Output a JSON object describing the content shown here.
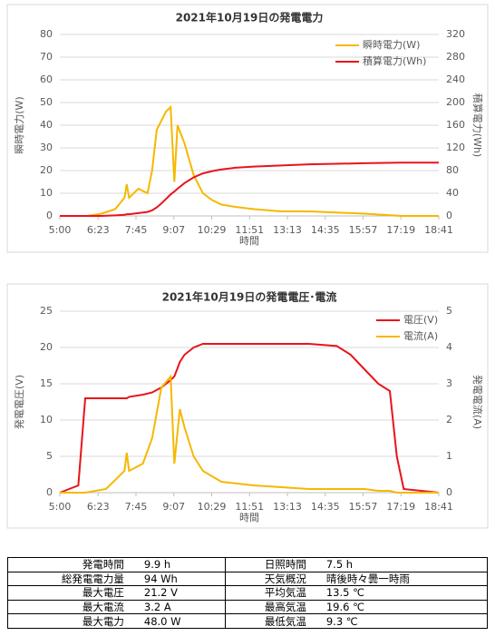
{
  "chart_data": [
    {
      "type": "line",
      "title": "2021年10月19日の発電電力",
      "xlabel": "時間",
      "ylabel": "瞬時電力(W)",
      "y2label": "積算電力(Wh)",
      "x": [
        300,
        360,
        390,
        420,
        440,
        445,
        450,
        470,
        490,
        500,
        510,
        520,
        530,
        540,
        548,
        555,
        570,
        590,
        610,
        630,
        650,
        680,
        720,
        780,
        840,
        900,
        960,
        1040,
        1121
      ],
      "series": [
        {
          "name": "瞬時電力(W)",
          "color": "#f5b800",
          "values": [
            0,
            0,
            1,
            3,
            8,
            14,
            8,
            12,
            10,
            20,
            38,
            42,
            46,
            48,
            15,
            40,
            32,
            18,
            10,
            7,
            5,
            4,
            3,
            2,
            2,
            1.5,
            1,
            0,
            0
          ]
        },
        {
          "name": "積算電力(Wh)",
          "color": "#e8141b",
          "axis": "y2",
          "values": [
            0,
            0,
            0,
            1,
            2,
            3,
            3,
            5,
            7,
            10,
            15,
            22,
            30,
            38,
            43,
            48,
            58,
            68,
            75,
            79,
            82,
            85,
            87,
            89,
            91,
            92,
            93,
            94,
            94
          ]
        }
      ],
      "xlim": [
        300,
        1121
      ],
      "xticks": [
        {
          "value": 300,
          "label": "5:00"
        },
        {
          "value": 383,
          "label": "6:23"
        },
        {
          "value": 465,
          "label": "7:45"
        },
        {
          "value": 547,
          "label": "9:07"
        },
        {
          "value": 629,
          "label": "10:29"
        },
        {
          "value": 711,
          "label": "11:51"
        },
        {
          "value": 793,
          "label": "13:13"
        },
        {
          "value": 875,
          "label": "14:35"
        },
        {
          "value": 957,
          "label": "15:57"
        },
        {
          "value": 1039,
          "label": "17:19"
        },
        {
          "value": 1121,
          "label": "18:41"
        }
      ],
      "ylim": [
        0,
        80
      ],
      "yticks": [
        0,
        10,
        20,
        30,
        40,
        50,
        60,
        70,
        80
      ],
      "y2lim": [
        0,
        320
      ],
      "y2ticks": [
        0,
        40,
        80,
        120,
        160,
        200,
        240,
        280,
        320
      ],
      "grid": true,
      "legend": "top-right"
    },
    {
      "type": "line",
      "title": "2021年10月19日の発電電圧･電流",
      "xlabel": "時間",
      "ylabel": "発電電圧(V)",
      "y2label": "発電電流(A)",
      "x": [
        300,
        340,
        355,
        400,
        440,
        445,
        450,
        480,
        500,
        520,
        540,
        548,
        560,
        570,
        590,
        610,
        650,
        720,
        780,
        840,
        900,
        930,
        960,
        990,
        1015,
        1030,
        1045,
        1121
      ],
      "series": [
        {
          "name": "電圧(V)",
          "color": "#e8141b",
          "values": [
            0,
            1,
            13,
            13,
            13,
            13,
            13.2,
            13.5,
            13.8,
            14.5,
            15.5,
            16,
            18,
            19,
            20,
            20.5,
            20.5,
            20.5,
            20.5,
            20.5,
            20.2,
            19,
            17,
            15,
            14,
            5,
            0.5,
            0
          ]
        },
        {
          "name": "電流(A)",
          "color": "#f5b800",
          "axis": "y2",
          "values": [
            0,
            0,
            0,
            0.1,
            0.6,
            1.1,
            0.6,
            0.8,
            1.5,
            2.9,
            3.2,
            0.8,
            2.3,
            1.8,
            1.0,
            0.6,
            0.3,
            0.2,
            0.15,
            0.1,
            0.1,
            0.1,
            0.1,
            0.05,
            0.05,
            0,
            0,
            0
          ]
        }
      ],
      "xlim": [
        300,
        1121
      ],
      "xticks": [
        {
          "value": 300,
          "label": "5:00"
        },
        {
          "value": 383,
          "label": "6:23"
        },
        {
          "value": 465,
          "label": "7:45"
        },
        {
          "value": 547,
          "label": "9:07"
        },
        {
          "value": 629,
          "label": "10:29"
        },
        {
          "value": 711,
          "label": "11:51"
        },
        {
          "value": 793,
          "label": "13:13"
        },
        {
          "value": 875,
          "label": "14:35"
        },
        {
          "value": 957,
          "label": "15:57"
        },
        {
          "value": 1039,
          "label": "17:19"
        },
        {
          "value": 1121,
          "label": "18:41"
        }
      ],
      "ylim": [
        0,
        25
      ],
      "yticks": [
        0,
        5,
        10,
        15,
        20,
        25
      ],
      "y2lim": [
        0,
        5
      ],
      "y2ticks": [
        0,
        1,
        2,
        3,
        4,
        5
      ],
      "grid": true,
      "legend": "top-right"
    }
  ],
  "table": {
    "rows": [
      [
        "発電時間",
        "9.9 h",
        "日照時間",
        "7.5 h"
      ],
      [
        "総発電電力量",
        "94 Wh",
        "天気概況",
        "晴後時々曇一時雨"
      ],
      [
        "最大電圧",
        "21.2 V",
        "平均気温",
        "13.5 ℃"
      ],
      [
        "最大電流",
        "3.2 A",
        "最高気温",
        "19.6 ℃"
      ],
      [
        "最大電力",
        "48.0 W",
        "最低気温",
        "9.3 ℃"
      ]
    ]
  }
}
